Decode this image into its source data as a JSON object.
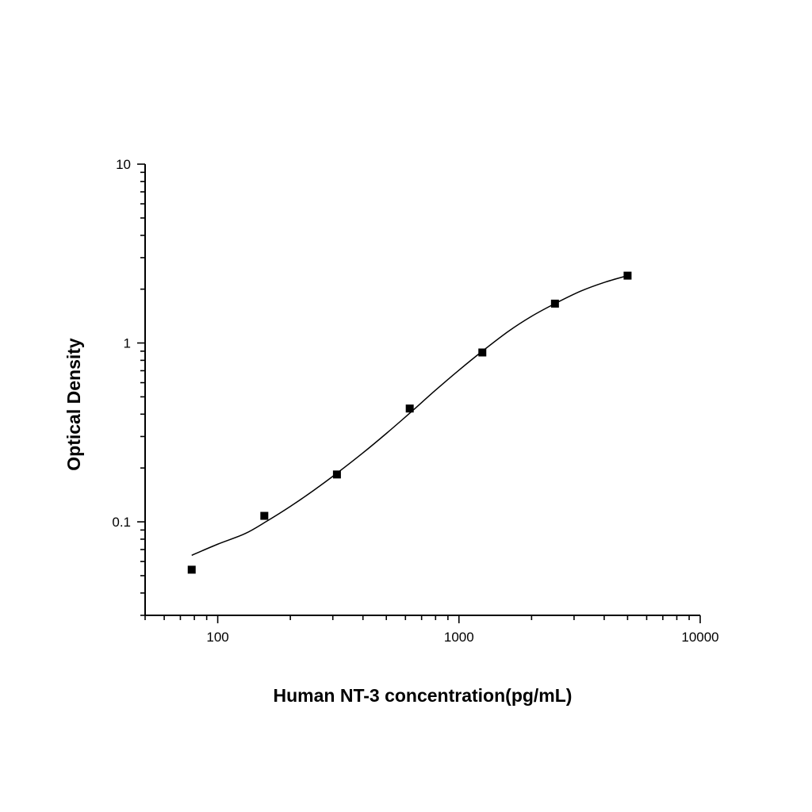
{
  "chart_data": {
    "type": "scatter",
    "title": "",
    "xlabel": "Human NT-3 concentration(pg/mL)",
    "ylabel": "Optical Density",
    "x_scale": "log",
    "y_scale": "log",
    "xlim": [
      50,
      10000
    ],
    "ylim": [
      0.03,
      10
    ],
    "x_ticks": [
      {
        "value": 100,
        "label": "100"
      },
      {
        "value": 1000,
        "label": "1000"
      },
      {
        "value": 10000,
        "label": "10000"
      }
    ],
    "y_ticks": [
      {
        "value": 0.1,
        "label": "0.1"
      },
      {
        "value": 1,
        "label": "1"
      },
      {
        "value": 10,
        "label": "10"
      }
    ],
    "grid": false,
    "legend": "none",
    "series": [
      {
        "kind": "points",
        "marker": "square",
        "color": "#000000",
        "x": [
          78,
          156,
          312,
          625,
          1250,
          2500,
          5000
        ],
        "y": [
          0.054,
          0.108,
          0.184,
          0.43,
          0.885,
          1.66,
          2.38
        ]
      },
      {
        "kind": "fit-line",
        "color": "#000000",
        "x": [
          78,
          100,
          130,
          160,
          200,
          250,
          312,
          400,
          500,
          625,
          800,
          1000,
          1250,
          1600,
          2000,
          2500,
          3200,
          4000,
          5000
        ],
        "y": [
          0.065,
          0.075,
          0.086,
          0.101,
          0.122,
          0.15,
          0.187,
          0.243,
          0.312,
          0.405,
          0.545,
          0.705,
          0.9,
          1.16,
          1.41,
          1.66,
          1.95,
          2.18,
          2.38
        ]
      }
    ]
  }
}
